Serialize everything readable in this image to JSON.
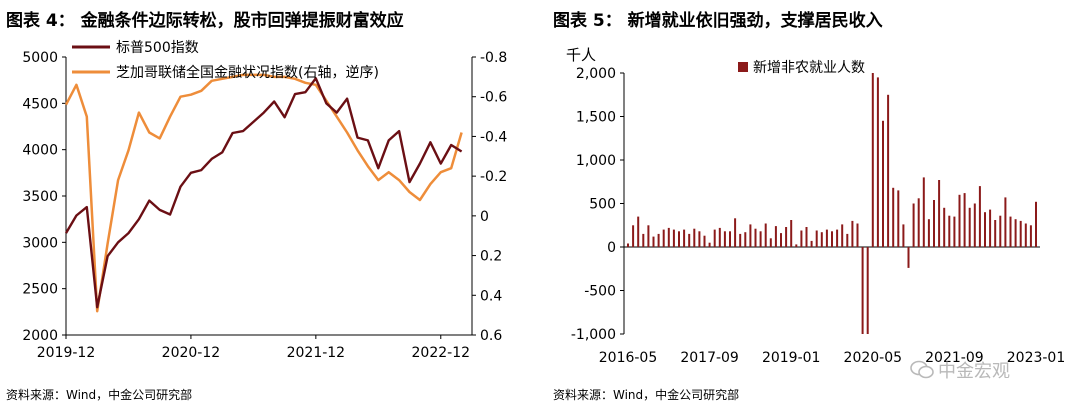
{
  "panels": {
    "left": {
      "title": "图表 4：  金融条件边际转松，股市回弹提振财富效应",
      "source": "资料来源：Wind，中金公司研究部"
    },
    "right": {
      "title": "图表 5：  新增就业依旧强劲，支撑居民收入",
      "source": "资料来源：Wind，中金公司研究部"
    }
  },
  "watermark": {
    "text": "中金宏观",
    "icon": "wechat-icon"
  },
  "colors": {
    "sp500": "#6b0f14",
    "fci": "#ee8d3a",
    "bars": "#8b1a1a",
    "axis": "#000000"
  },
  "chart_data": [
    {
      "type": "line",
      "legend_position": "top-left",
      "grid": false,
      "x_ticks": [
        "2019-12",
        "2020-12",
        "2021-12",
        "2022-12"
      ],
      "x_range": [
        "2019-12",
        "2023-03"
      ],
      "ylim": [
        2000,
        5000
      ],
      "y_ticks": [
        2000,
        2500,
        3000,
        3500,
        4000,
        4500,
        5000
      ],
      "y2lim": [
        -0.8,
        0.6
      ],
      "y2_inverted": true,
      "y2_ticks": [
        "-0.8",
        "-0.6",
        "-0.4",
        "-0.2",
        "0",
        "0.2",
        "0.4",
        "0.6"
      ],
      "series": [
        {
          "name": "标普500指数",
          "axis": "left",
          "x": [
            "2019-12",
            "2020-01",
            "2020-02",
            "2020-03",
            "2020-04",
            "2020-05",
            "2020-06",
            "2020-07",
            "2020-08",
            "2020-09",
            "2020-10",
            "2020-11",
            "2020-12",
            "2021-01",
            "2021-02",
            "2021-03",
            "2021-04",
            "2021-05",
            "2021-06",
            "2021-07",
            "2021-08",
            "2021-09",
            "2021-10",
            "2021-11",
            "2021-12",
            "2022-01",
            "2022-02",
            "2022-03",
            "2022-04",
            "2022-05",
            "2022-06",
            "2022-07",
            "2022-08",
            "2022-09",
            "2022-10",
            "2022-11",
            "2022-12",
            "2023-01",
            "2023-02"
          ],
          "y": [
            3100,
            3290,
            3380,
            2300,
            2850,
            3000,
            3100,
            3250,
            3450,
            3350,
            3300,
            3600,
            3750,
            3780,
            3900,
            3970,
            4180,
            4200,
            4300,
            4400,
            4520,
            4350,
            4600,
            4620,
            4770,
            4500,
            4400,
            4550,
            4130,
            4100,
            3800,
            4100,
            4200,
            3650,
            3850,
            4080,
            3850,
            4050,
            3980
          ]
        },
        {
          "name": "芝加哥联储全国金融状况指数(右轴，逆序)",
          "axis": "right",
          "x": [
            "2019-12",
            "2020-01",
            "2020-02",
            "2020-03",
            "2020-04",
            "2020-05",
            "2020-06",
            "2020-07",
            "2020-08",
            "2020-09",
            "2020-10",
            "2020-11",
            "2020-12",
            "2021-01",
            "2021-02",
            "2021-03",
            "2021-04",
            "2021-05",
            "2021-06",
            "2021-07",
            "2021-08",
            "2021-09",
            "2021-10",
            "2021-11",
            "2021-12",
            "2022-01",
            "2022-02",
            "2022-03",
            "2022-04",
            "2022-05",
            "2022-06",
            "2022-07",
            "2022-08",
            "2022-09",
            "2022-10",
            "2022-11",
            "2022-12",
            "2023-01",
            "2023-02"
          ],
          "y": [
            -0.56,
            -0.66,
            -0.5,
            0.48,
            0.14,
            -0.18,
            -0.33,
            -0.52,
            -0.42,
            -0.39,
            -0.5,
            -0.6,
            -0.61,
            -0.63,
            -0.68,
            -0.69,
            -0.7,
            -0.71,
            -0.71,
            -0.71,
            -0.7,
            -0.7,
            -0.69,
            -0.67,
            -0.66,
            -0.58,
            -0.5,
            -0.42,
            -0.33,
            -0.25,
            -0.18,
            -0.22,
            -0.18,
            -0.12,
            -0.08,
            -0.16,
            -0.22,
            -0.24,
            -0.42
          ]
        }
      ]
    },
    {
      "type": "bar",
      "legend_position": "top-center",
      "grid": false,
      "ylabel": "千人",
      "ylim": [
        -1000,
        2000
      ],
      "y_ticks": [
        "-1,000",
        "-500",
        "0",
        "500",
        "1,000",
        "1,500",
        "2,000"
      ],
      "x_ticks": [
        "2016-05",
        "2017-09",
        "2019-01",
        "2020-05",
        "2021-09",
        "2023-01"
      ],
      "series": [
        {
          "name": "新增非农就业人数",
          "x": [
            "2016-05",
            "2016-06",
            "2016-07",
            "2016-08",
            "2016-09",
            "2016-10",
            "2016-11",
            "2016-12",
            "2017-01",
            "2017-02",
            "2017-03",
            "2017-04",
            "2017-05",
            "2017-06",
            "2017-07",
            "2017-08",
            "2017-09",
            "2017-10",
            "2017-11",
            "2017-12",
            "2018-01",
            "2018-02",
            "2018-03",
            "2018-04",
            "2018-05",
            "2018-06",
            "2018-07",
            "2018-08",
            "2018-09",
            "2018-10",
            "2018-11",
            "2018-12",
            "2019-01",
            "2019-02",
            "2019-03",
            "2019-04",
            "2019-05",
            "2019-06",
            "2019-07",
            "2019-08",
            "2019-09",
            "2019-10",
            "2019-11",
            "2019-12",
            "2020-01",
            "2020-02",
            "2020-03",
            "2020-04",
            "2020-05",
            "2020-06",
            "2020-07",
            "2020-08",
            "2020-09",
            "2020-10",
            "2020-11",
            "2020-12",
            "2021-01",
            "2021-02",
            "2021-03",
            "2021-04",
            "2021-05",
            "2021-06",
            "2021-07",
            "2021-08",
            "2021-09",
            "2021-10",
            "2021-11",
            "2021-12",
            "2022-01",
            "2022-02",
            "2022-03",
            "2022-04",
            "2022-05",
            "2022-06",
            "2022-07",
            "2022-08",
            "2022-09",
            "2022-10",
            "2022-11",
            "2022-12",
            "2023-01"
          ],
          "values": [
            40,
            250,
            350,
            150,
            250,
            120,
            150,
            200,
            220,
            200,
            180,
            200,
            150,
            210,
            180,
            130,
            50,
            200,
            220,
            180,
            180,
            330,
            150,
            170,
            260,
            210,
            180,
            270,
            100,
            240,
            160,
            230,
            310,
            30,
            190,
            230,
            70,
            190,
            170,
            200,
            180,
            200,
            260,
            150,
            300,
            270,
            -1000,
            -1000,
            2000,
            1950,
            1450,
            1750,
            680,
            650,
            260,
            -240,
            500,
            560,
            800,
            320,
            540,
            770,
            450,
            360,
            350,
            600,
            620,
            450,
            500,
            700,
            400,
            430,
            310,
            360,
            570,
            350,
            320,
            300,
            270,
            250,
            520
          ]
        }
      ]
    }
  ]
}
